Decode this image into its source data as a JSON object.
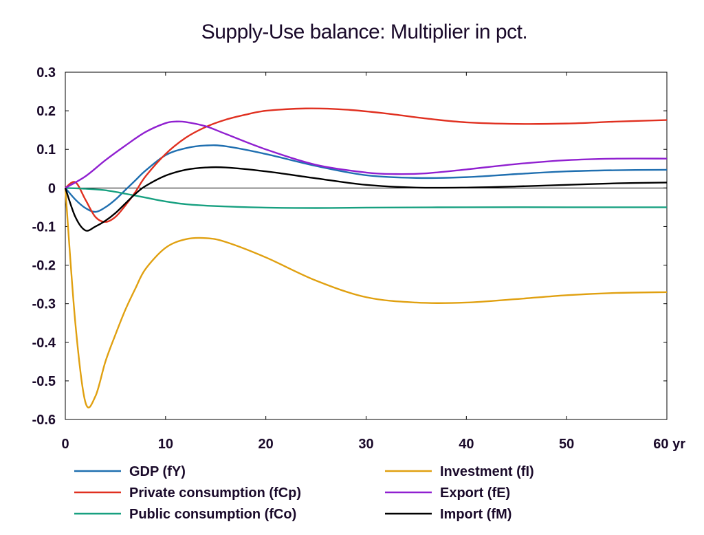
{
  "chart_data": {
    "type": "line",
    "title": "Supply-Use balance: Multiplier in pct.",
    "xlabel": "",
    "ylabel": "",
    "x_unit_label": "yr",
    "xlim": [
      0,
      60
    ],
    "ylim": [
      -0.6,
      0.3
    ],
    "x_ticks": [
      0,
      10,
      20,
      30,
      40,
      50,
      60
    ],
    "x_tick_labels": [
      "0",
      "10",
      "20",
      "30",
      "40",
      "50",
      "60 yr"
    ],
    "y_ticks": [
      0.3,
      0.2,
      0.1,
      0,
      -0.1,
      -0.2,
      -0.3,
      -0.4,
      -0.5,
      -0.6
    ],
    "y_tick_labels": [
      "0.3",
      "0.2",
      "0.1",
      "0",
      "-0.1",
      "-0.2",
      "-0.3",
      "-0.4",
      "-0.5",
      "-0.6"
    ],
    "grid": false,
    "zero_line": true,
    "legend_position": "bottom",
    "series": [
      {
        "name": "GDP (fY)",
        "color": "#1f6fb0",
        "x": [
          0,
          1,
          2,
          3,
          4,
          5,
          6,
          7,
          8,
          10,
          12,
          14,
          16,
          20,
          25,
          30,
          35,
          40,
          45,
          50,
          55,
          60
        ],
        "values": [
          0,
          -0.03,
          -0.052,
          -0.062,
          -0.05,
          -0.03,
          -0.005,
          0.02,
          0.045,
          0.085,
          0.103,
          0.11,
          0.108,
          0.088,
          0.057,
          0.033,
          0.026,
          0.028,
          0.036,
          0.043,
          0.046,
          0.047
        ]
      },
      {
        "name": "Private consumption (fCp)",
        "color": "#e03020",
        "x": [
          0,
          1,
          2,
          3,
          4,
          5,
          6,
          7,
          8,
          10,
          12,
          14,
          16,
          18,
          20,
          24,
          28,
          32,
          36,
          40,
          45,
          50,
          55,
          60
        ],
        "values": [
          0,
          0.015,
          -0.03,
          -0.075,
          -0.088,
          -0.075,
          -0.045,
          -0.01,
          0.03,
          0.088,
          0.13,
          0.158,
          0.177,
          0.19,
          0.2,
          0.206,
          0.203,
          0.193,
          0.18,
          0.17,
          0.166,
          0.167,
          0.172,
          0.176
        ]
      },
      {
        "name": "Public consumption (fCo)",
        "color": "#17a080",
        "x": [
          0,
          2,
          4,
          6,
          8,
          10,
          12,
          15,
          20,
          25,
          30,
          40,
          50,
          60
        ],
        "values": [
          0,
          -0.002,
          -0.006,
          -0.015,
          -0.025,
          -0.035,
          -0.042,
          -0.047,
          -0.051,
          -0.052,
          -0.051,
          -0.05,
          -0.05,
          -0.05
        ]
      },
      {
        "name": "Investment (fI)",
        "color": "#e0a010",
        "x": [
          0,
          1,
          2,
          3,
          4,
          5,
          6,
          7,
          8,
          10,
          12,
          14,
          16,
          20,
          25,
          30,
          35,
          40,
          45,
          50,
          55,
          60
        ],
        "values": [
          0,
          -0.35,
          -0.555,
          -0.54,
          -0.45,
          -0.38,
          -0.315,
          -0.26,
          -0.21,
          -0.155,
          -0.133,
          -0.13,
          -0.14,
          -0.18,
          -0.24,
          -0.283,
          -0.297,
          -0.297,
          -0.288,
          -0.278,
          -0.272,
          -0.27
        ]
      },
      {
        "name": "Export (fE)",
        "color": "#9020d0",
        "x": [
          0,
          2,
          4,
          6,
          8,
          10,
          11,
          12,
          14,
          16,
          20,
          25,
          30,
          33,
          36,
          40,
          45,
          50,
          55,
          60
        ],
        "values": [
          0,
          0.03,
          0.072,
          0.11,
          0.145,
          0.168,
          0.172,
          0.171,
          0.16,
          0.14,
          0.1,
          0.06,
          0.04,
          0.036,
          0.038,
          0.048,
          0.062,
          0.072,
          0.076,
          0.076
        ]
      },
      {
        "name": "Import (fM)",
        "color": "#000000",
        "x": [
          0,
          1,
          2,
          3,
          4,
          5,
          6,
          7,
          8,
          10,
          12,
          14,
          16,
          20,
          25,
          30,
          35,
          40,
          45,
          50,
          55,
          60
        ],
        "values": [
          0,
          -0.075,
          -0.11,
          -0.1,
          -0.085,
          -0.065,
          -0.04,
          -0.015,
          0.005,
          0.032,
          0.047,
          0.053,
          0.053,
          0.043,
          0.025,
          0.008,
          0.001,
          0.001,
          0.004,
          0.008,
          0.012,
          0.014
        ]
      }
    ]
  }
}
